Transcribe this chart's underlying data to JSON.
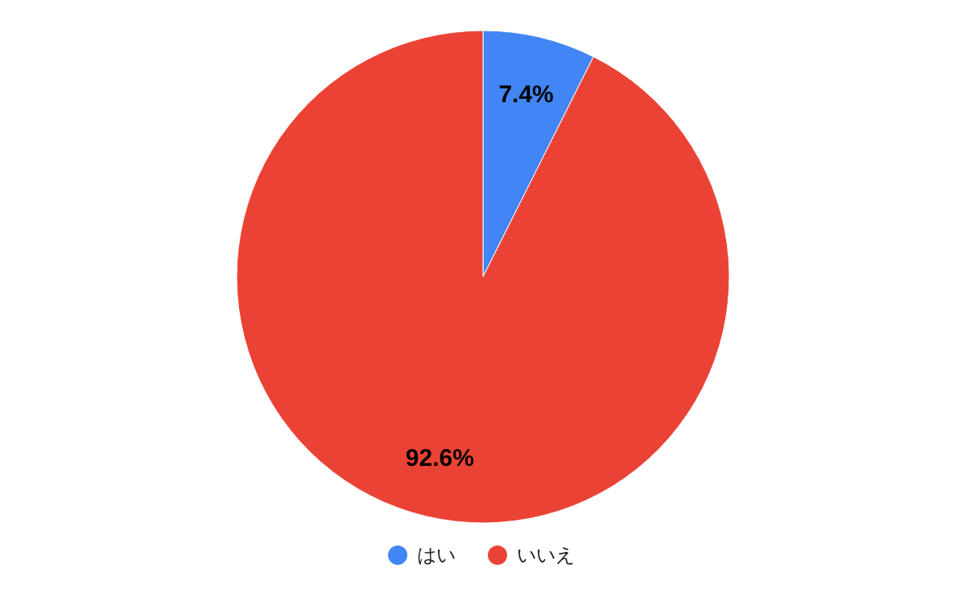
{
  "chart_data": {
    "type": "pie",
    "categories": [
      "はい",
      "いいえ"
    ],
    "values": [
      7.4,
      92.6
    ],
    "value_labels": [
      "7.4%",
      "92.6%"
    ],
    "colors": [
      "#4285f4",
      "#ea4335"
    ],
    "legend": "bottom"
  }
}
